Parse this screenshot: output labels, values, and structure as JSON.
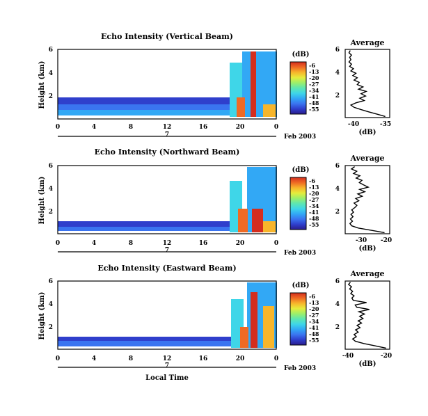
{
  "chart_data": [
    {
      "type": "heatmap",
      "title": "Echo Intensity (Vertical Beam)",
      "ylabel": "Height (km)",
      "xticks": [
        "0",
        "4",
        "8",
        "12",
        "16",
        "20",
        "0"
      ],
      "yticks": [
        "2",
        "4",
        "6"
      ],
      "ylim": [
        0,
        6
      ],
      "date_ticks": [
        "7"
      ],
      "date_label": "Feb 2003",
      "colorbar": {
        "unit": "(dB)",
        "ticks": [
          "-6",
          "-13",
          "-20",
          "-27",
          "-34",
          "-41",
          "-48",
          "-55"
        ]
      },
      "profile": {
        "title": "Average",
        "xlabel": "(dB)",
        "xticks": [
          "-40",
          "-35"
        ],
        "xlim": [
          -41.5,
          -34.5
        ],
        "ylim": [
          0,
          6
        ],
        "yticks": [
          "2",
          "4",
          "6"
        ],
        "heights": [
          0.1,
          0.3,
          0.5,
          0.7,
          0.9,
          1.1,
          1.3,
          1.5,
          1.7,
          1.9,
          2.1,
          2.3,
          2.5,
          2.7,
          2.9,
          3.1,
          3.3,
          3.5,
          3.7,
          3.9,
          4.1,
          4.3,
          4.5,
          4.7,
          4.9,
          5.1,
          5.3,
          5.5,
          5.7,
          5.9
        ],
        "values": [
          -35.2,
          -36.5,
          -37.8,
          -39.0,
          -40.1,
          -40.6,
          -39.8,
          -38.5,
          -39.2,
          -38.3,
          -39.0,
          -38.2,
          -39.4,
          -38.7,
          -39.6,
          -39.3,
          -40.1,
          -39.6,
          -40.3,
          -39.8,
          -40.6,
          -40.2,
          -40.8,
          -40.5,
          -40.9,
          -40.6,
          -40.8,
          -40.5,
          -40.9,
          -40.7
        ]
      }
    },
    {
      "type": "heatmap",
      "title": "Echo Intensity (Northward Beam)",
      "ylabel": "Height (km)",
      "xticks": [
        "0",
        "4",
        "8",
        "12",
        "16",
        "20",
        "0"
      ],
      "yticks": [
        "2",
        "4",
        "6"
      ],
      "ylim": [
        0,
        6
      ],
      "date_ticks": [
        "7"
      ],
      "date_label": "Feb 2003",
      "colorbar": {
        "unit": "(dB)",
        "ticks": [
          "-6",
          "-13",
          "-20",
          "-27",
          "-34",
          "-41",
          "-48",
          "-55"
        ]
      },
      "profile": {
        "title": "Average",
        "xlabel": "(dB)",
        "xticks": [
          "-30",
          "-20"
        ],
        "xlim": [
          -36,
          -19
        ],
        "ylim": [
          0,
          6
        ],
        "yticks": [
          "2",
          "4",
          "6"
        ],
        "heights": [
          0.1,
          0.3,
          0.5,
          0.7,
          0.9,
          1.1,
          1.3,
          1.5,
          1.7,
          1.9,
          2.1,
          2.3,
          2.5,
          2.7,
          2.9,
          3.1,
          3.3,
          3.5,
          3.7,
          3.9,
          4.1,
          4.3,
          4.5,
          4.7,
          4.9,
          5.1,
          5.3,
          5.5,
          5.7,
          5.9
        ],
        "values": [
          -21.0,
          -26.0,
          -31.0,
          -33.5,
          -34.2,
          -33.2,
          -34.0,
          -33.0,
          -33.8,
          -32.8,
          -33.5,
          -32.3,
          -31.5,
          -32.6,
          -30.8,
          -32.0,
          -29.5,
          -31.2,
          -28.5,
          -30.5,
          -27.2,
          -29.0,
          -30.6,
          -29.6,
          -31.8,
          -30.4,
          -32.8,
          -31.6,
          -33.6,
          -32.4
        ]
      }
    },
    {
      "type": "heatmap",
      "title": "Echo Intensity (Eastward Beam)",
      "ylabel": "Height (km)",
      "xticks": [
        "0",
        "4",
        "8",
        "12",
        "16",
        "20",
        "0"
      ],
      "yticks": [
        "2",
        "4",
        "6"
      ],
      "ylim": [
        0,
        6
      ],
      "date_ticks": [
        "7"
      ],
      "date_label": "Feb 2003",
      "xlabel": "Local Time",
      "colorbar": {
        "unit": "(dB)",
        "ticks": [
          "-6",
          "-13",
          "-20",
          "-27",
          "-34",
          "-41",
          "-48",
          "-55"
        ]
      },
      "profile": {
        "title": "Average",
        "xlabel": "(dB)",
        "xticks": [
          "-40",
          "-20"
        ],
        "xlim": [
          -42,
          -18
        ],
        "ylim": [
          0,
          6
        ],
        "yticks": [
          "2",
          "4",
          "6"
        ],
        "heights": [
          0.1,
          0.3,
          0.5,
          0.7,
          0.9,
          1.1,
          1.3,
          1.5,
          1.7,
          1.9,
          2.1,
          2.3,
          2.5,
          2.7,
          2.9,
          3.1,
          3.3,
          3.5,
          3.7,
          3.9,
          4.1,
          4.3,
          4.5,
          4.7,
          4.9,
          5.1,
          5.3,
          5.5,
          5.7,
          5.9
        ],
        "values": [
          -20.0,
          -26.0,
          -32.0,
          -36.5,
          -38.0,
          -36.0,
          -37.2,
          -35.0,
          -36.4,
          -34.0,
          -35.6,
          -33.2,
          -35.0,
          -32.4,
          -34.2,
          -31.6,
          -34.6,
          -29.0,
          -35.8,
          -36.6,
          -30.5,
          -37.6,
          -38.4,
          -37.2,
          -39.0,
          -38.0,
          -39.6,
          -38.6,
          -40.2,
          -39.2
        ]
      }
    }
  ],
  "colorscale": [
    "#2a1c8c",
    "#2f3fcc",
    "#3a74f0",
    "#32a8f5",
    "#3fd6e8",
    "#5ee6b0",
    "#9cef6a",
    "#e6ec3c",
    "#f7b52b",
    "#ef6a24",
    "#d42d1e"
  ]
}
